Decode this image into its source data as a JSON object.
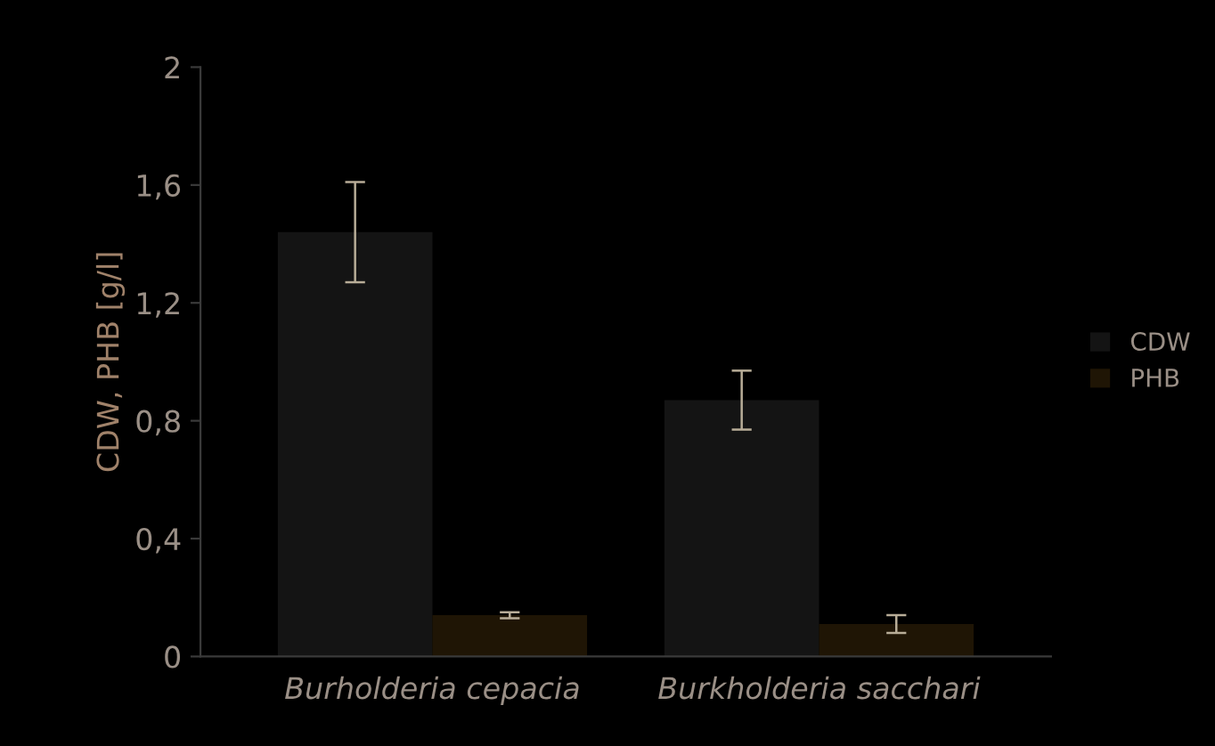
{
  "chart_data": {
    "type": "bar",
    "ylabel": "CDW, PHB [g/l]",
    "categories": [
      "Burholderia cepacia",
      "Burkholderia sacchari"
    ],
    "series": [
      {
        "name": "CDW",
        "color": "#141414",
        "values": [
          1.44,
          0.87
        ],
        "errors": [
          0.17,
          0.1
        ]
      },
      {
        "name": "PHB",
        "color": "#1f1505",
        "values": [
          0.14,
          0.11
        ],
        "errors": [
          0.01,
          0.03
        ]
      }
    ],
    "ylim": [
      0,
      2
    ],
    "yticks": [
      0,
      {
        "value": 0.4,
        "label": "0,4"
      },
      {
        "value": 0.8,
        "label": "0,8"
      },
      {
        "value": 1.2,
        "label": "1,2"
      },
      {
        "value": 1.6,
        "label": "1,6"
      },
      2
    ],
    "grid": false,
    "legend": "right"
  }
}
